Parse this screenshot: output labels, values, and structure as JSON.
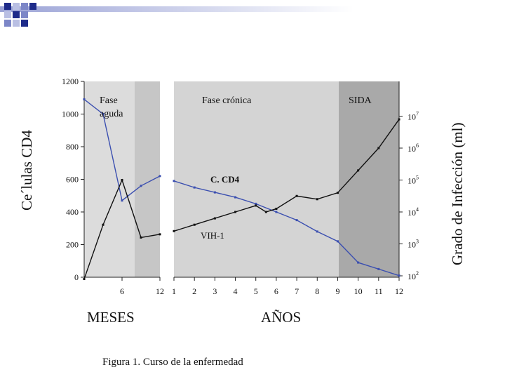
{
  "chart_data": {
    "type": "line",
    "caption": "Figura 1. Curso de la enfermedad",
    "ylabel_left": "Ce´lulas CD4",
    "ylabel_right": "Grado de Infección (ml)",
    "ylim_left": [
      0,
      1200
    ],
    "left_ticks": [
      "0",
      "200",
      "400",
      "600",
      "800",
      "1000",
      "1200"
    ],
    "right_ticks": [
      {
        "base": "10",
        "exp": "2"
      },
      {
        "base": "10",
        "exp": "3"
      },
      {
        "base": "10",
        "exp": "4"
      },
      {
        "base": "10",
        "exp": "5"
      },
      {
        "base": "10",
        "exp": "6"
      },
      {
        "base": "10",
        "exp": "7"
      }
    ],
    "right_axis_log": true,
    "xlabel_months": "MESES",
    "xlabel_years": "AÑOS",
    "month_ticks": [
      "6",
      "12"
    ],
    "year_ticks": [
      "1",
      "2",
      "3",
      "4",
      "5",
      "6",
      "7",
      "8",
      "9",
      "10",
      "11",
      "12"
    ],
    "phases": [
      {
        "label": "Fase aguda",
        "line1": "Fase",
        "line2": "aguda",
        "color": "#dcdcdc"
      },
      {
        "label": "",
        "color": "#c6c6c6"
      },
      {
        "label": "Fase crónica",
        "color": "#d4d4d4"
      },
      {
        "label": "SIDA",
        "color": "#a9a9a9"
      }
    ],
    "series": [
      {
        "name": "C. CD4",
        "color": "#3b4fb0",
        "months": [
          [
            0,
            1090
          ],
          [
            3,
            1000
          ],
          [
            6,
            470
          ],
          [
            9,
            560
          ],
          [
            12,
            620
          ]
        ],
        "years": [
          [
            1,
            590
          ],
          [
            2,
            550
          ],
          [
            3,
            520
          ],
          [
            4,
            490
          ],
          [
            5,
            450
          ],
          [
            6,
            400
          ],
          [
            7,
            350
          ],
          [
            8,
            280
          ],
          [
            9,
            220
          ],
          [
            10,
            90
          ],
          [
            11,
            50
          ],
          [
            12,
            10
          ]
        ]
      },
      {
        "name": "VIH-1",
        "color": "#111111",
        "months": [
          [
            0,
            1.9
          ],
          [
            3,
            3.6
          ],
          [
            6,
            5.0
          ],
          [
            9,
            3.2
          ],
          [
            12,
            3.3
          ]
        ],
        "years": [
          [
            1,
            3.4
          ],
          [
            2,
            3.6
          ],
          [
            3,
            3.8
          ],
          [
            4,
            4.0
          ],
          [
            5,
            4.2
          ],
          [
            5.5,
            4.0
          ],
          [
            6,
            4.1
          ],
          [
            7,
            4.5
          ],
          [
            8,
            4.4
          ],
          [
            9,
            4.6
          ],
          [
            10,
            5.3
          ],
          [
            11,
            6.0
          ],
          [
            12,
            6.9
          ]
        ]
      }
    ]
  }
}
